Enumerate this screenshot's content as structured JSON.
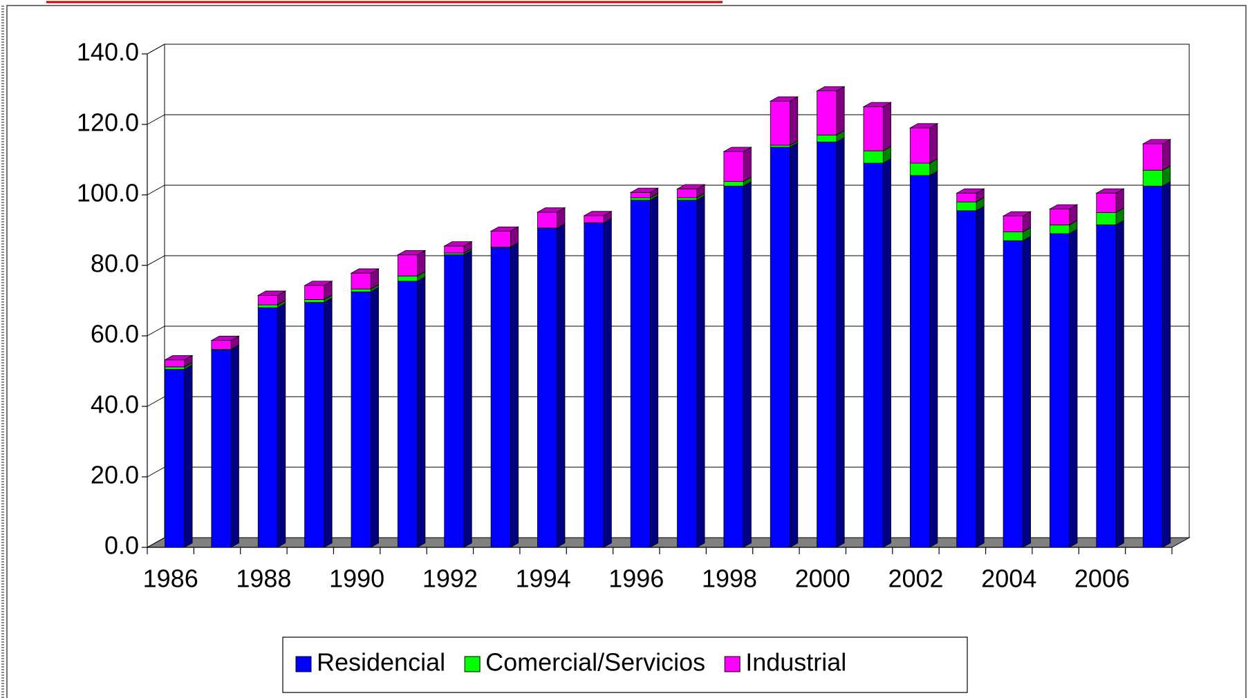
{
  "chart_data": {
    "type": "bar",
    "stacked": true,
    "categories": [
      1986,
      null,
      1988,
      null,
      1990,
      null,
      1992,
      null,
      1994,
      null,
      1996,
      null,
      1998,
      null,
      2000,
      null,
      2002,
      null,
      2004,
      null,
      2006,
      null
    ],
    "series": [
      {
        "name": "Residencial",
        "color": "#0000ff",
        "values": [
          50.5,
          56,
          68,
          69.5,
          72.5,
          75.5,
          83,
          85,
          90.5,
          92,
          98.5,
          98.5,
          102.5,
          113.5,
          115,
          109,
          105.5,
          95.5,
          87,
          89,
          91.5,
          102.5
        ]
      },
      {
        "name": "Comercial/Servicios",
        "color": "#00ff00",
        "values": [
          0.7,
          0.2,
          0.8,
          0.8,
          0.8,
          1.5,
          0.5,
          0.2,
          0.1,
          0.1,
          0.7,
          0.7,
          1.3,
          0.6,
          2.0,
          3.5,
          3.5,
          2.5,
          2.5,
          2.5,
          3.5,
          4.5
        ]
      },
      {
        "name": "Industrial",
        "color": "#ff00ff",
        "values": [
          2.0,
          2.5,
          2.7,
          4.0,
          4.5,
          6.0,
          2.0,
          4.5,
          4.5,
          2.0,
          1.5,
          2.5,
          8.5,
          12.5,
          12.5,
          12.5,
          10,
          2.5,
          4.5,
          4.5,
          5.5,
          7.5
        ]
      }
    ],
    "ylim": [
      0,
      140
    ],
    "yticks": [
      {
        "value": 0,
        "label": "0.0"
      },
      {
        "value": 20,
        "label": "20.0"
      },
      {
        "value": 40,
        "label": "40.0"
      },
      {
        "value": 60,
        "label": "60.0"
      },
      {
        "value": 80,
        "label": "80.0"
      },
      {
        "value": 100,
        "label": "100.0"
      },
      {
        "value": 120,
        "label": "120.0"
      },
      {
        "value": 140,
        "label": "140.0"
      }
    ],
    "grid": true
  }
}
